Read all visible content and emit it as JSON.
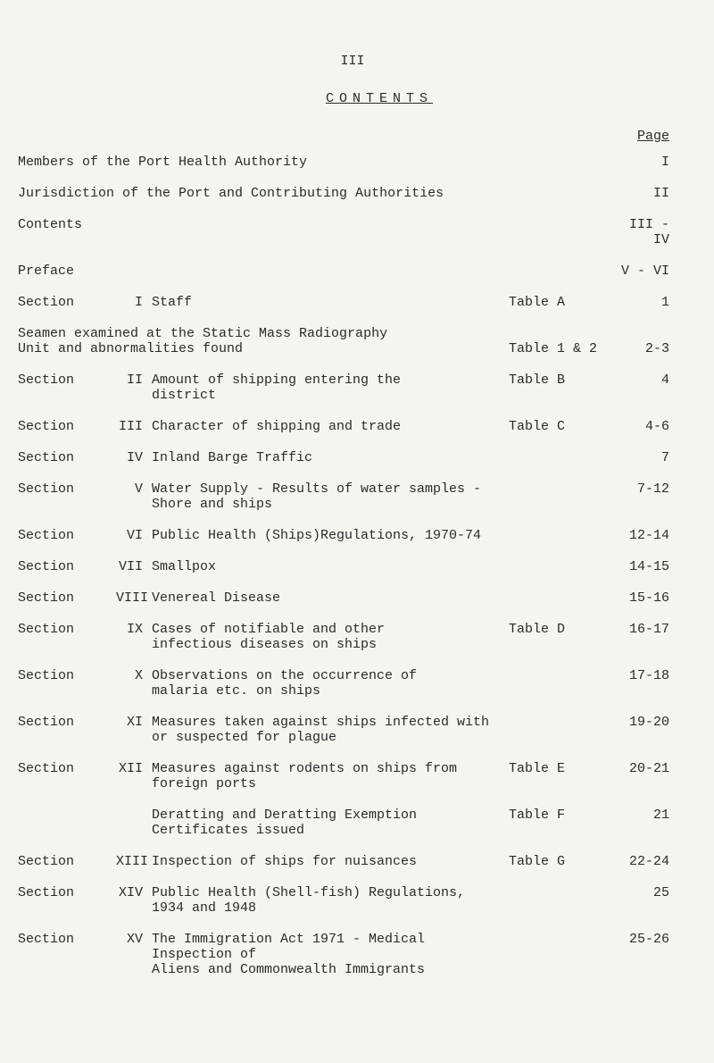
{
  "page_number": "III",
  "title": "CONTENTS",
  "page_header": "Page",
  "simple_entries": [
    {
      "label": "Members of the Port Health Authority",
      "page": "I"
    },
    {
      "label": "Jurisdiction of the Port and Contributing Authorities",
      "page": "II"
    },
    {
      "label": "Contents",
      "page": "III - IV"
    },
    {
      "label": "Preface",
      "page": "V - VI"
    }
  ],
  "section_entries": [
    {
      "section": "Section",
      "num": "I",
      "desc": "Staff",
      "table": "Table  A",
      "page": "1"
    }
  ],
  "seamen_entry": {
    "line1": "Seamen examined at the Static Mass Radiography",
    "line2": "Unit and abnormalities found",
    "table": "Table 1 & 2",
    "page": "2-3"
  },
  "main_sections": [
    {
      "section": "Section",
      "num": "II",
      "desc": "Amount of shipping entering the\ndistrict",
      "table": "Table  B",
      "page": "4"
    },
    {
      "section": "Section",
      "num": "III",
      "desc": "Character of shipping and trade",
      "table": "Table  C",
      "page": "4-6"
    },
    {
      "section": "Section",
      "num": "IV",
      "desc": "Inland Barge Traffic",
      "table": "",
      "page": "7"
    },
    {
      "section": "Section",
      "num": "V",
      "desc": "Water Supply - Results of water samples -\nShore and ships",
      "table": "",
      "page": "7-12"
    },
    {
      "section": "Section",
      "num": "VI",
      "desc": "Public Health (Ships)Regulations, 1970-74",
      "table": "",
      "page": "12-14"
    },
    {
      "section": "Section",
      "num": "VII",
      "desc": "Smallpox",
      "table": "",
      "page": "14-15"
    },
    {
      "section": "Section",
      "num": "VIII",
      "desc": "Venereal Disease",
      "table": "",
      "page": "15-16"
    },
    {
      "section": "Section",
      "num": "IX",
      "desc": "Cases of notifiable and other\ninfectious diseases on ships",
      "table": "Table  D",
      "page": "16-17"
    },
    {
      "section": "Section",
      "num": "X",
      "desc": "Observations on the occurrence of\nmalaria etc. on ships",
      "table": "",
      "page": "17-18"
    },
    {
      "section": "Section",
      "num": "XI",
      "desc": "Measures taken against ships infected with\nor suspected for plague",
      "table": "",
      "page": "19-20"
    },
    {
      "section": "Section",
      "num": "XII",
      "desc": "Measures against rodents on ships from\nforeign ports",
      "table": "Table  E",
      "page": "20-21"
    }
  ],
  "deratting_entry": {
    "desc": "Deratting and Deratting Exemption\nCertificates issued",
    "table": "Table  F",
    "page": "21"
  },
  "final_sections": [
    {
      "section": "Section",
      "num": "XIII",
      "desc": "Inspection of ships for nuisances",
      "table": "Table  G",
      "page": "22-24"
    },
    {
      "section": "Section",
      "num": "XIV",
      "desc": "Public Health (Shell-fish) Regulations, 1934 and 1948",
      "table": "",
      "page": "25"
    },
    {
      "section": "Section",
      "num": "XV",
      "desc": "The Immigration Act 1971 - Medical Inspection of\nAliens and Commonwealth Immigrants",
      "table": "",
      "page": "25-26"
    }
  ],
  "colors": {
    "background": "#f5f5f0",
    "text": "#2a2a2a"
  },
  "font_size_pt": 15
}
